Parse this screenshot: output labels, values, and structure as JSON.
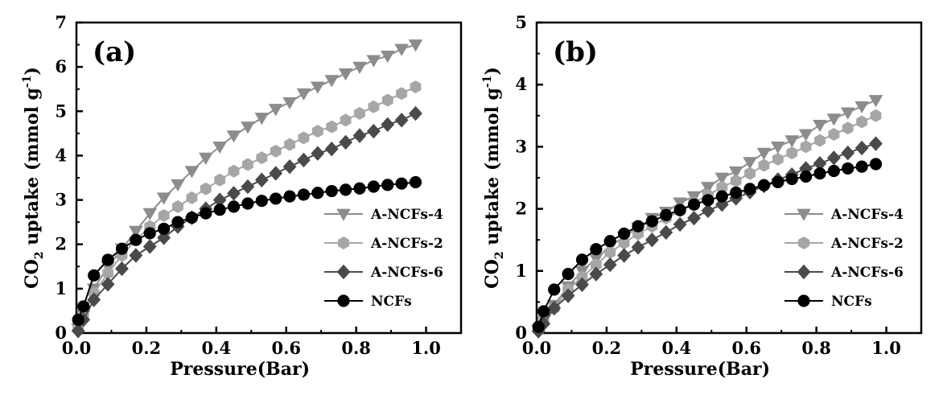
{
  "chart_data": [
    {
      "type": "scatter",
      "panel_label": "(a)",
      "xlabel": "Pressure(Bar)",
      "ylabel": "CO2 uptake (mmol g-1)",
      "ylabel_parts": {
        "co": "CO",
        "sub": "2",
        "mid": " uptake (mmol g",
        "sup": "-1",
        "end": ")"
      },
      "xlim": [
        0,
        1.1
      ],
      "ylim": [
        0,
        7
      ],
      "xticks": [
        "0.0",
        "0.2",
        "0.4",
        "0.6",
        "0.8",
        "1.0"
      ],
      "xtick_values": [
        0,
        0.2,
        0.4,
        0.6,
        0.8,
        1.0
      ],
      "yticks": [
        "0",
        "1",
        "2",
        "3",
        "4",
        "5",
        "6",
        "7"
      ],
      "ytick_values": [
        0,
        1,
        2,
        3,
        4,
        5,
        6,
        7
      ],
      "legend_position": "lower-right",
      "series": [
        {
          "name": "A-NCFs-4",
          "marker": "triangle-down",
          "color": "#8c8c8c",
          "x": [
            0.005,
            0.02,
            0.05,
            0.09,
            0.13,
            0.17,
            0.21,
            0.25,
            0.29,
            0.33,
            0.37,
            0.41,
            0.45,
            0.49,
            0.53,
            0.57,
            0.61,
            0.65,
            0.69,
            0.73,
            0.77,
            0.81,
            0.85,
            0.89,
            0.93,
            0.97
          ],
          "y": [
            0.1,
            0.4,
            1.0,
            1.5,
            1.9,
            2.3,
            2.7,
            3.05,
            3.35,
            3.65,
            3.95,
            4.2,
            4.45,
            4.65,
            4.85,
            5.05,
            5.2,
            5.4,
            5.55,
            5.7,
            5.85,
            6.0,
            6.15,
            6.25,
            6.4,
            6.5
          ]
        },
        {
          "name": "A-NCFs-2",
          "marker": "hexagon",
          "color": "#a6a6a6",
          "x": [
            0.005,
            0.02,
            0.05,
            0.09,
            0.13,
            0.17,
            0.21,
            0.25,
            0.29,
            0.33,
            0.37,
            0.41,
            0.45,
            0.49,
            0.53,
            0.57,
            0.61,
            0.65,
            0.69,
            0.73,
            0.77,
            0.81,
            0.85,
            0.89,
            0.93,
            0.97
          ],
          "y": [
            0.1,
            0.4,
            0.9,
            1.35,
            1.75,
            2.1,
            2.4,
            2.65,
            2.85,
            3.05,
            3.25,
            3.45,
            3.65,
            3.8,
            3.95,
            4.1,
            4.25,
            4.4,
            4.55,
            4.65,
            4.8,
            4.95,
            5.1,
            5.25,
            5.4,
            5.55
          ]
        },
        {
          "name": "A-NCFs-6",
          "marker": "diamond",
          "color": "#4a4a4a",
          "x": [
            0.005,
            0.02,
            0.05,
            0.09,
            0.13,
            0.17,
            0.21,
            0.25,
            0.29,
            0.33,
            0.37,
            0.41,
            0.45,
            0.49,
            0.53,
            0.57,
            0.61,
            0.65,
            0.69,
            0.73,
            0.77,
            0.81,
            0.85,
            0.89,
            0.93,
            0.97
          ],
          "y": [
            0.05,
            0.3,
            0.75,
            1.1,
            1.45,
            1.75,
            1.95,
            2.15,
            2.4,
            2.6,
            2.8,
            3.0,
            3.15,
            3.3,
            3.45,
            3.6,
            3.75,
            3.9,
            4.05,
            4.15,
            4.3,
            4.45,
            4.55,
            4.7,
            4.8,
            4.95
          ]
        },
        {
          "name": "NCFs",
          "marker": "circle",
          "color": "#000000",
          "x": [
            0.005,
            0.02,
            0.05,
            0.09,
            0.13,
            0.17,
            0.21,
            0.25,
            0.29,
            0.33,
            0.37,
            0.41,
            0.45,
            0.49,
            0.53,
            0.57,
            0.61,
            0.65,
            0.69,
            0.73,
            0.77,
            0.81,
            0.85,
            0.89,
            0.93,
            0.97
          ],
          "y": [
            0.3,
            0.6,
            1.3,
            1.65,
            1.9,
            2.1,
            2.25,
            2.35,
            2.5,
            2.6,
            2.7,
            2.78,
            2.85,
            2.92,
            2.98,
            3.03,
            3.08,
            3.12,
            3.16,
            3.2,
            3.23,
            3.26,
            3.3,
            3.34,
            3.37,
            3.4
          ]
        }
      ]
    },
    {
      "type": "scatter",
      "panel_label": "(b)",
      "xlabel": "Pressure(Bar)",
      "ylabel": "CO2 uptake (mmol g-1)",
      "ylabel_parts": {
        "co": "CO",
        "sub": "2",
        "mid": " uptake (mmol g",
        "sup": "-1",
        "end": ")"
      },
      "xlim": [
        0,
        1.1
      ],
      "ylim": [
        0,
        5
      ],
      "xticks": [
        "0.0",
        "0.2",
        "0.4",
        "0.6",
        "0.8",
        "1.0"
      ],
      "xtick_values": [
        0,
        0.2,
        0.4,
        0.6,
        0.8,
        1.0
      ],
      "yticks": [
        "0",
        "1",
        "2",
        "3",
        "4",
        "5"
      ],
      "ytick_values": [
        0,
        1,
        2,
        3,
        4,
        5
      ],
      "legend_position": "lower-right",
      "series": [
        {
          "name": "A-NCFs-4",
          "marker": "triangle-down",
          "color": "#8c8c8c",
          "x": [
            0.005,
            0.02,
            0.05,
            0.09,
            0.13,
            0.17,
            0.21,
            0.25,
            0.29,
            0.33,
            0.37,
            0.41,
            0.45,
            0.49,
            0.53,
            0.57,
            0.61,
            0.65,
            0.69,
            0.73,
            0.77,
            0.81,
            0.85,
            0.89,
            0.93,
            0.97
          ],
          "y": [
            0.05,
            0.2,
            0.45,
            0.75,
            1.0,
            1.2,
            1.4,
            1.55,
            1.7,
            1.85,
            1.95,
            2.1,
            2.2,
            2.35,
            2.5,
            2.6,
            2.75,
            2.9,
            3.0,
            3.1,
            3.2,
            3.35,
            3.45,
            3.55,
            3.65,
            3.75
          ]
        },
        {
          "name": "A-NCFs-2",
          "marker": "hexagon",
          "color": "#a6a6a6",
          "x": [
            0.005,
            0.02,
            0.05,
            0.09,
            0.13,
            0.17,
            0.21,
            0.25,
            0.29,
            0.33,
            0.37,
            0.41,
            0.45,
            0.49,
            0.53,
            0.57,
            0.61,
            0.65,
            0.69,
            0.73,
            0.77,
            0.81,
            0.85,
            0.89,
            0.93,
            0.97
          ],
          "y": [
            0.05,
            0.2,
            0.4,
            0.7,
            0.9,
            1.1,
            1.3,
            1.45,
            1.6,
            1.72,
            1.85,
            1.97,
            2.1,
            2.22,
            2.35,
            2.45,
            2.57,
            2.7,
            2.8,
            2.9,
            3.0,
            3.1,
            3.2,
            3.3,
            3.4,
            3.5
          ]
        },
        {
          "name": "A-NCFs-6",
          "marker": "diamond",
          "color": "#4a4a4a",
          "x": [
            0.005,
            0.02,
            0.05,
            0.09,
            0.13,
            0.17,
            0.21,
            0.25,
            0.29,
            0.33,
            0.37,
            0.41,
            0.45,
            0.49,
            0.53,
            0.57,
            0.61,
            0.65,
            0.69,
            0.73,
            0.77,
            0.81,
            0.85,
            0.89,
            0.93,
            0.97
          ],
          "y": [
            0.03,
            0.15,
            0.4,
            0.6,
            0.78,
            0.95,
            1.1,
            1.25,
            1.38,
            1.5,
            1.62,
            1.75,
            1.85,
            1.97,
            2.07,
            2.17,
            2.27,
            2.37,
            2.47,
            2.55,
            2.65,
            2.73,
            2.82,
            2.9,
            2.98,
            3.05
          ]
        },
        {
          "name": "NCFs",
          "marker": "circle",
          "color": "#000000",
          "x": [
            0.005,
            0.02,
            0.05,
            0.09,
            0.13,
            0.17,
            0.21,
            0.25,
            0.29,
            0.33,
            0.37,
            0.41,
            0.45,
            0.49,
            0.53,
            0.57,
            0.61,
            0.65,
            0.69,
            0.73,
            0.77,
            0.81,
            0.85,
            0.89,
            0.93,
            0.97
          ],
          "y": [
            0.1,
            0.35,
            0.7,
            0.95,
            1.18,
            1.35,
            1.48,
            1.6,
            1.72,
            1.8,
            1.9,
            1.98,
            2.07,
            2.14,
            2.2,
            2.26,
            2.32,
            2.38,
            2.43,
            2.48,
            2.52,
            2.57,
            2.61,
            2.65,
            2.68,
            2.72
          ]
        }
      ]
    }
  ]
}
